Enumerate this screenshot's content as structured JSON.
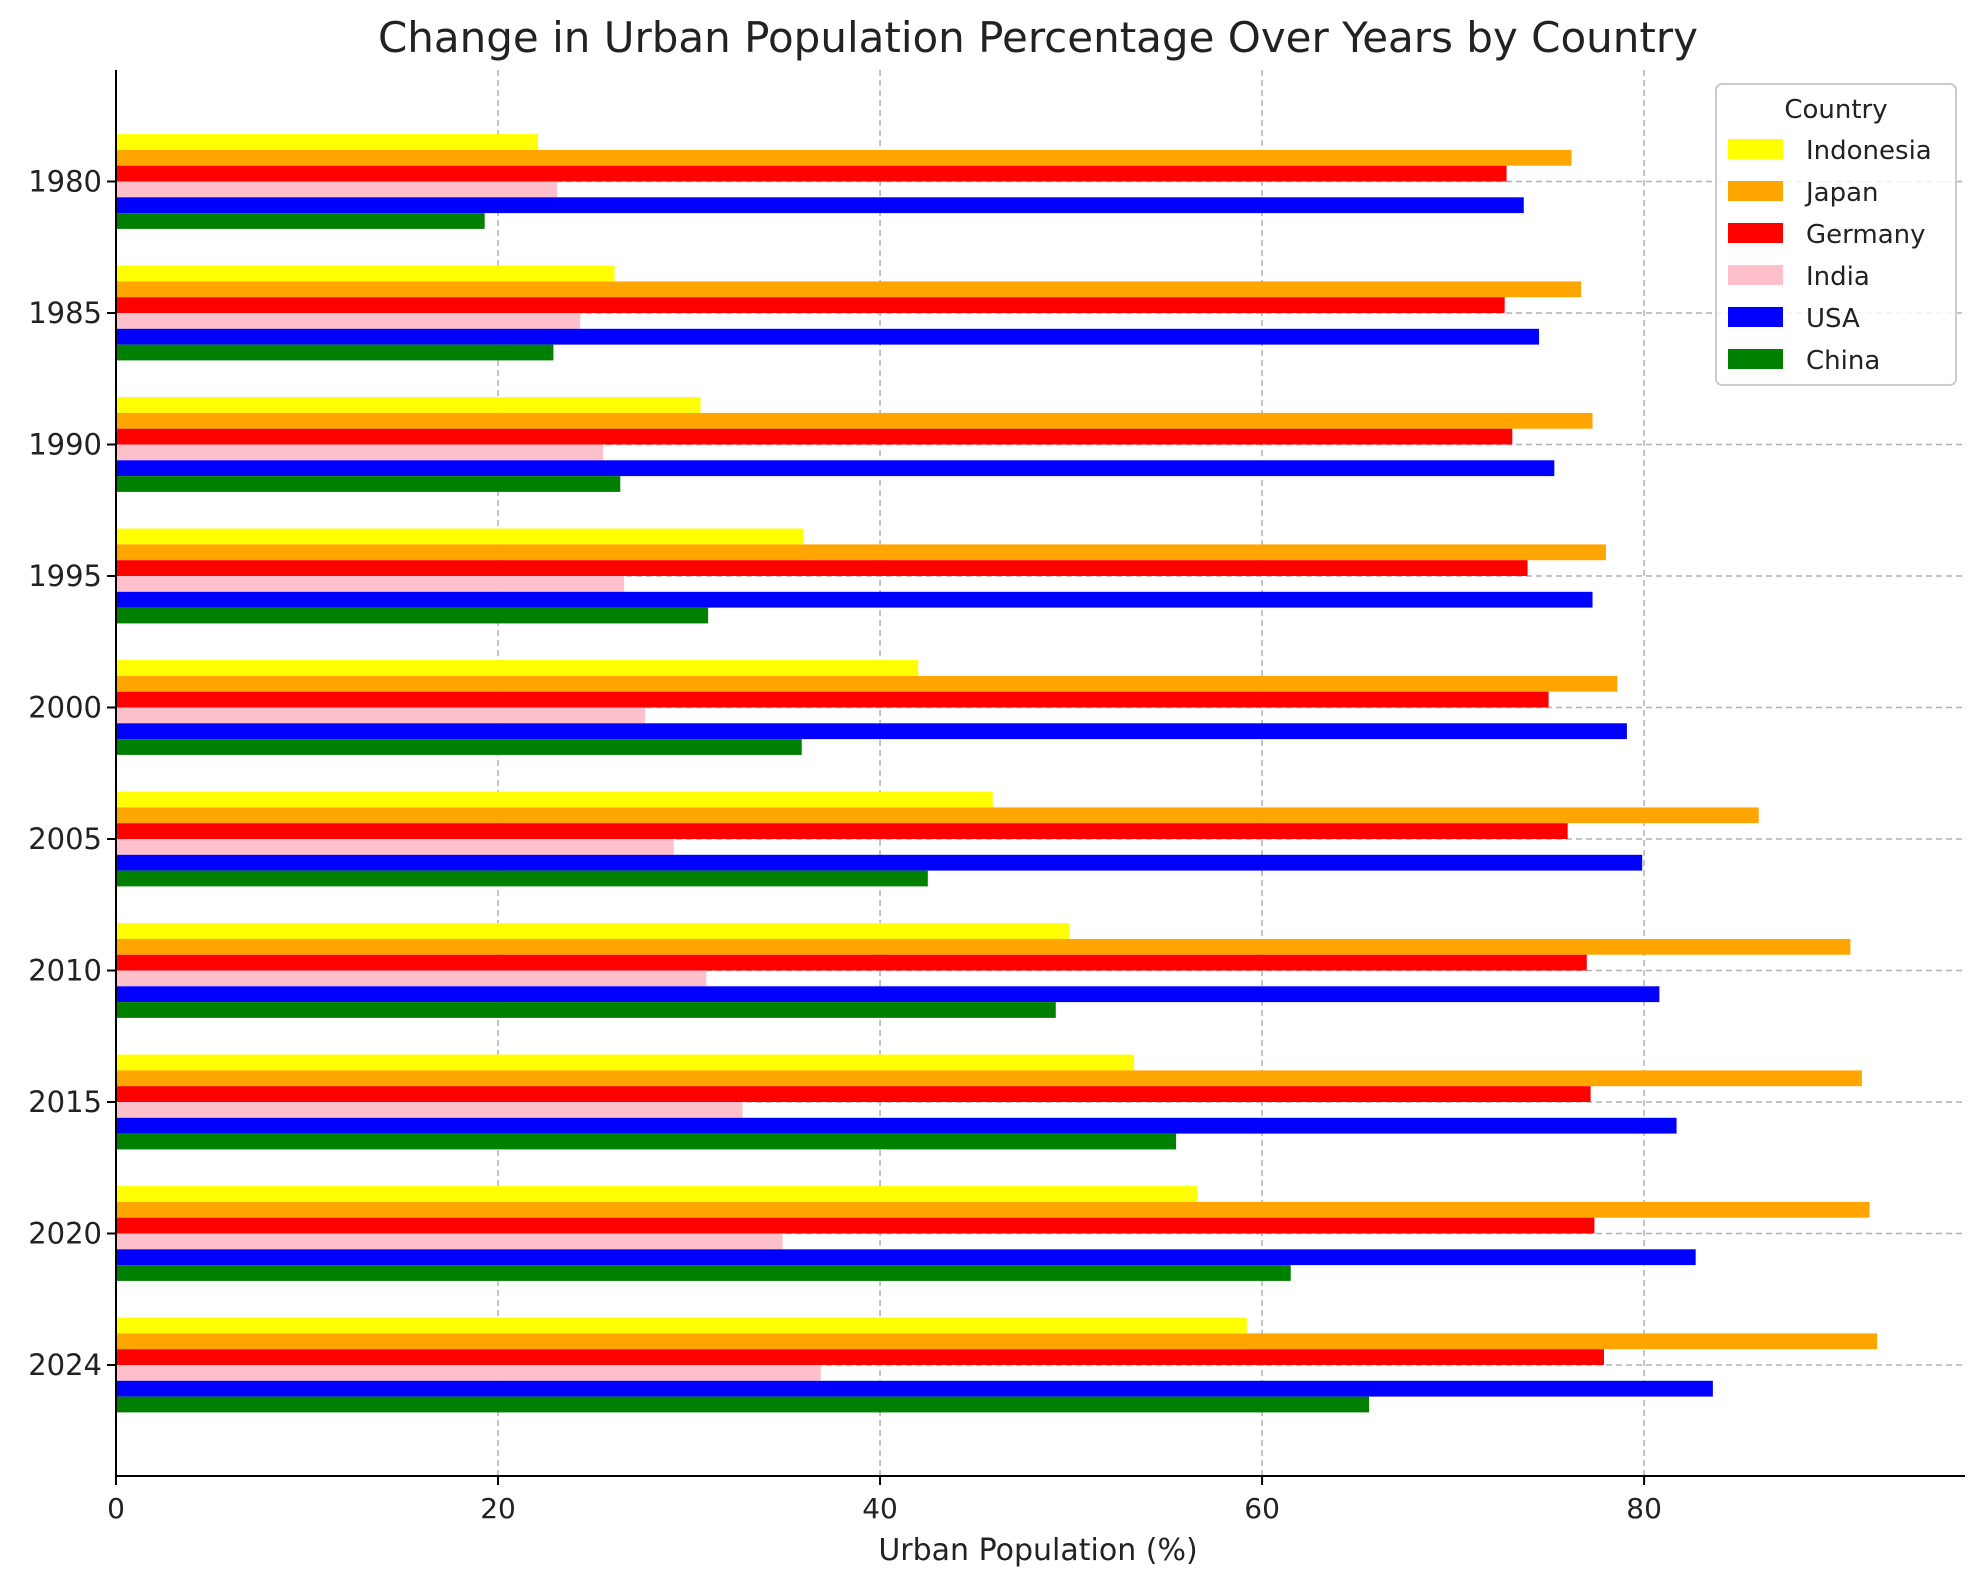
{
  "chart_data": {
    "type": "bar",
    "orientation": "horizontal",
    "title": "Change in Urban Population Percentage Over Years by Country",
    "xlabel": "Urban Population (%)",
    "ylabel": "",
    "xlim": [
      0,
      96.8
    ],
    "xticks": [
      0,
      20,
      40,
      60,
      80
    ],
    "grid": true,
    "legend_title": "Country",
    "legend_position": "top-right",
    "categories": [
      "1980",
      "1985",
      "1990",
      "1995",
      "2000",
      "2005",
      "2010",
      "2015",
      "2020",
      "2024"
    ],
    "series": [
      {
        "name": "Indonesia",
        "color": "#ffff00",
        "values": [
          22.1,
          26.1,
          30.6,
          36.0,
          42.0,
          45.9,
          49.9,
          53.3,
          56.6,
          59.2
        ]
      },
      {
        "name": "Japan",
        "color": "#ffa500",
        "values": [
          76.2,
          76.7,
          77.3,
          78.0,
          78.6,
          86.0,
          90.8,
          91.4,
          91.8,
          92.2
        ]
      },
      {
        "name": "Germany",
        "color": "#ff0000",
        "values": [
          72.8,
          72.7,
          73.1,
          73.9,
          75.0,
          76.0,
          77.0,
          77.2,
          77.4,
          77.9
        ]
      },
      {
        "name": "India",
        "color": "#ffc0cb",
        "values": [
          23.1,
          24.3,
          25.5,
          26.6,
          27.7,
          29.2,
          30.9,
          32.8,
          34.9,
          36.9
        ]
      },
      {
        "name": "USA",
        "color": "#0000ff",
        "values": [
          73.7,
          74.5,
          75.3,
          77.3,
          79.1,
          79.9,
          80.8,
          81.7,
          82.7,
          83.6
        ]
      },
      {
        "name": "China",
        "color": "#008000",
        "values": [
          19.3,
          22.9,
          26.4,
          31.0,
          35.9,
          42.5,
          49.2,
          55.5,
          61.5,
          65.6
        ]
      }
    ]
  }
}
